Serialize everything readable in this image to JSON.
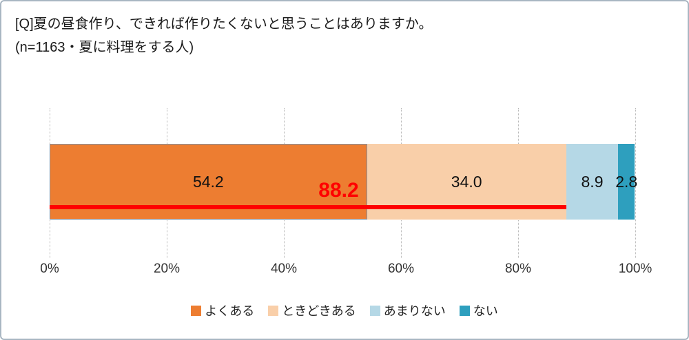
{
  "title": "[Q]夏の昼食作り、できれば作りたくないと思うことはありますか。",
  "subtitle": "(n=1163・夏に料理をする人)",
  "chart_data": {
    "type": "bar",
    "orientation": "horizontal-stacked",
    "title": "[Q]夏の昼食作り、できれば作りたくないと思うことはありますか。",
    "subtitle": "(n=1163・夏に料理をする人)",
    "categories": [
      "よくある",
      "ときどきある",
      "あまりない",
      "ない"
    ],
    "values": [
      54.2,
      34.0,
      8.9,
      2.8
    ],
    "value_labels": [
      "54.2",
      "34.0",
      "8.9",
      "2.8"
    ],
    "colors": [
      "#ed7d31",
      "#f9cfa9",
      "#b5d8e6",
      "#2e9fbe"
    ],
    "annotation": {
      "label": "88.2",
      "value": 88.2,
      "color": "#ff0000",
      "meaning": "よくある + ときどきある の合計"
    },
    "x_ticks": [
      "0%",
      "20%",
      "40%",
      "60%",
      "80%",
      "100%"
    ],
    "xlim": [
      0,
      100
    ],
    "grid": "dotted-vertical",
    "legend_position": "bottom"
  }
}
